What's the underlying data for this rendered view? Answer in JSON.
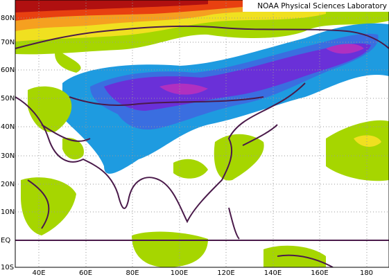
{
  "title": "NOAA Physical Sciences Laboratory",
  "latitude_labels": [
    "80N",
    "70N",
    "60N",
    "50N",
    "40N",
    "30N",
    "20N",
    "10N",
    "EQ",
    "10S"
  ],
  "longitude_labels": [
    "40E",
    "60E",
    "80E",
    "100E",
    "120E",
    "140E",
    "160E",
    "180"
  ]
}
